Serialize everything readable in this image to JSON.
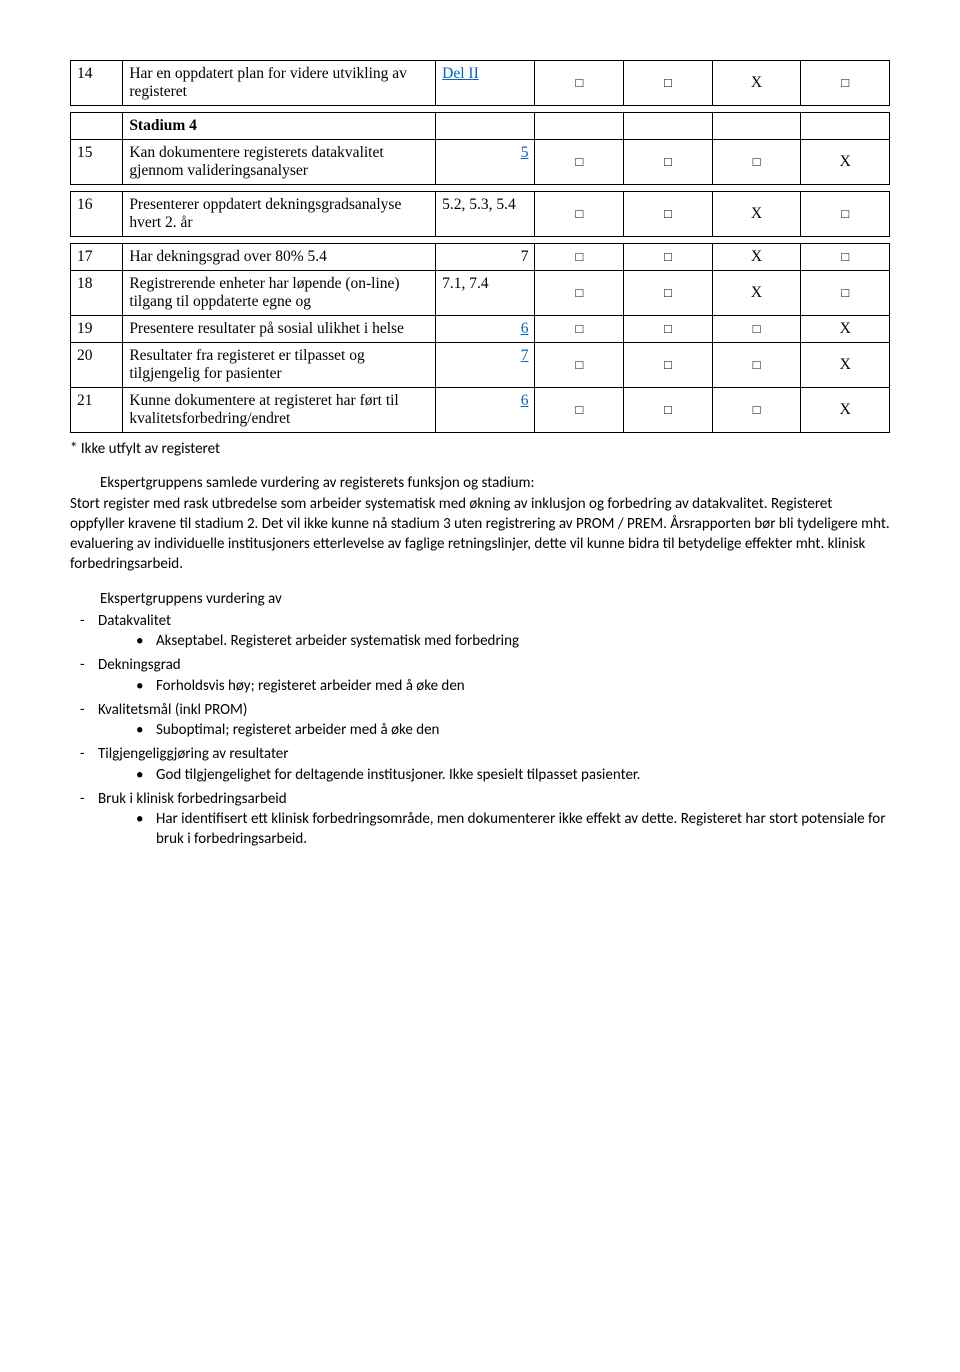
{
  "glyphs": {
    "box": "□",
    "x": "X"
  },
  "rows": {
    "r14": {
      "num": "14",
      "desc": "Har en oppdatert plan for videre utvikling av registeret",
      "ref": "Del II",
      "ref_link": true,
      "ref_right": false,
      "c1": "□",
      "c2": "□",
      "c3": "X",
      "c4": "□"
    },
    "stadium": {
      "num": "",
      "desc": "Stadium 4",
      "bold": true
    },
    "r15": {
      "num": "15",
      "desc": "Kan dokumentere registerets datakvalitet gjennom valideringsanalyser",
      "ref": "5",
      "ref_link": true,
      "ref_right": true,
      "c1": "□",
      "c2": "□",
      "c3": "□",
      "c4": "X"
    },
    "r16": {
      "num": "16",
      "desc": "Presenterer oppdatert dekningsgradsanalyse hvert 2. år",
      "ref": "5.2, 5.3, 5.4",
      "ref_link": false,
      "ref_right": false,
      "c1": "□",
      "c2": "□",
      "c3": "X",
      "c4": "□"
    },
    "r17": {
      "num": "17",
      "desc": "Har dekningsgrad over 80% 5.4",
      "ref": "7",
      "ref_link": false,
      "ref_right": true,
      "c1": "□",
      "c2": "□",
      "c3": "X",
      "c4": "□"
    },
    "r18": {
      "num": "18",
      "desc": "Registrerende enheter har løpende (on-line) tilgang til oppdaterte egne og",
      "ref": "7.1, 7.4",
      "ref_link": false,
      "ref_right": false,
      "c1": "□",
      "c2": "□",
      "c3": "X",
      "c4": "□"
    },
    "r19": {
      "num": "19",
      "desc": "Presentere resultater på sosial ulikhet i helse",
      "ref": "6",
      "ref_link": true,
      "ref_right": true,
      "c1": "□",
      "c2": "□",
      "c3": "□",
      "c4": "X"
    },
    "r20": {
      "num": "20",
      "desc": "Resultater fra registeret er tilpasset og tilgjengelig for pasienter",
      "ref": "7",
      "ref_link": true,
      "ref_right": true,
      "c1": "□",
      "c2": "□",
      "c3": "□",
      "c4": "X"
    },
    "r21": {
      "num": "21",
      "desc": "Kunne dokumentere at registeret har ført til kvalitetsforbedring/endret",
      "ref": "6",
      "ref_link": true,
      "ref_right": true,
      "c1": "□",
      "c2": "□",
      "c3": "□",
      "c4": "X"
    }
  },
  "footnote": "* Ikke utfylt av registeret",
  "summary": {
    "lead": "Ekspertgruppens samlede vurdering av registerets funksjon og stadium:",
    "body": "Stort register med rask utbredelse som arbeider systematisk med økning av inklusjon og forbedring av datakvalitet. Registeret oppfyller kravene til stadium 2. Det vil ikke kunne nå stadium 3 uten registrering av PROM / PREM. Årsrapporten bør bli tydeligere mht. evaluering av individuelle institusjoners etterlevelse av faglige retningslinjer, dette vil kunne bidra til betydelige effekter mht. klinisk forbedringsarbeid."
  },
  "assessment": {
    "title": "Ekspertgruppens vurdering av",
    "items": [
      {
        "label": "Datakvalitet",
        "bullets": [
          "Akseptabel. Registeret arbeider systematisk med forbedring"
        ]
      },
      {
        "label": "Dekningsgrad",
        "bullets": [
          "Forholdsvis høy; registeret arbeider med å øke den"
        ]
      },
      {
        "label": "Kvalitetsmål (inkl PROM)",
        "bullets": [
          "Suboptimal; registeret arbeider med å øke den"
        ]
      },
      {
        "label": "Tilgjengeliggjøring av resultater",
        "bullets": [
          "God tilgjengelighet for deltagende institusjoner. Ikke spesielt tilpasset pasienter."
        ]
      },
      {
        "label": "Bruk i klinisk forbedringsarbeid",
        "bullets": [
          "Har identifisert ett klinisk forbedringsområde, men dokumenterer ikke effekt av dette. Registeret har stort potensiale for bruk i forbedringsarbeid."
        ]
      }
    ]
  }
}
